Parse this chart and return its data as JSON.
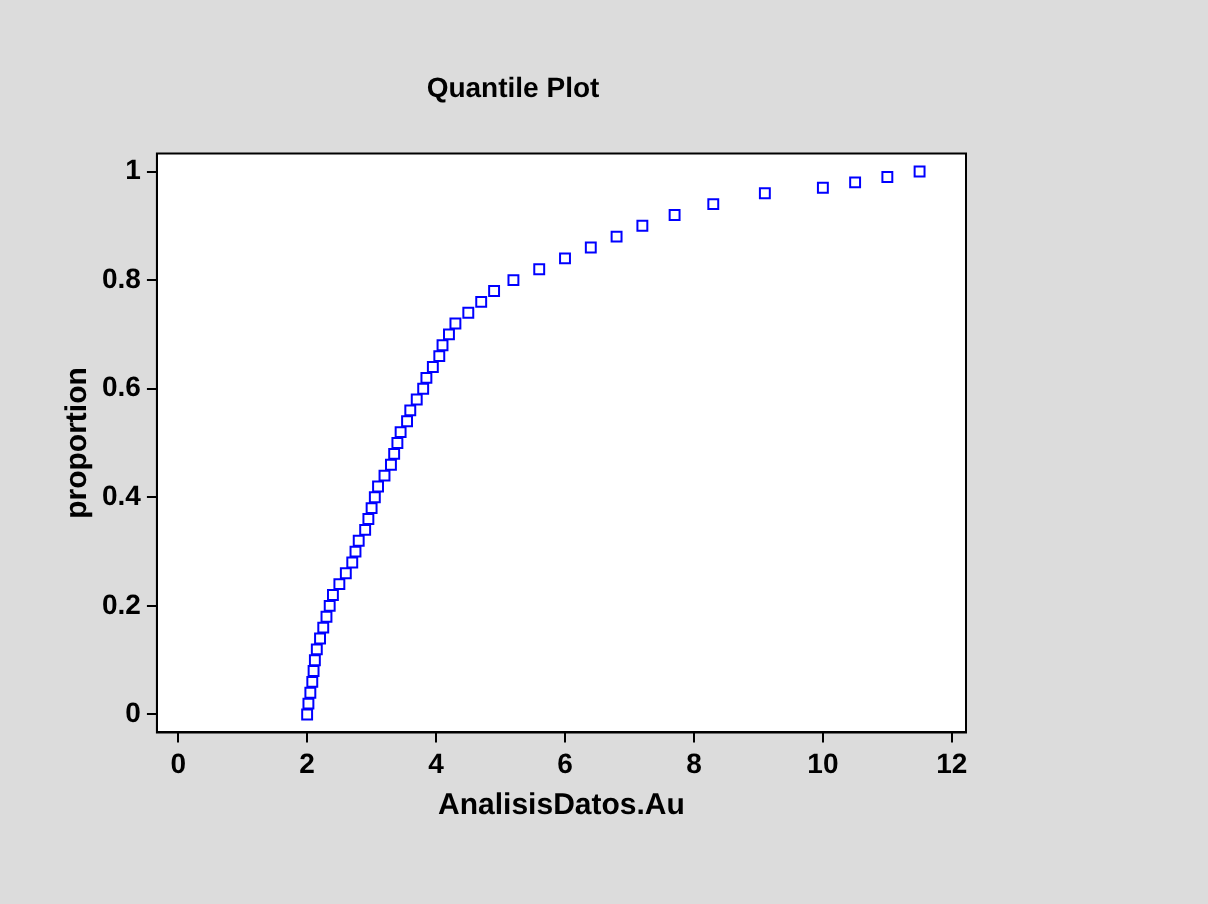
{
  "chart_data": {
    "type": "scatter",
    "title": "Quantile Plot",
    "xlabel": "AnalisisDatos.Au",
    "ylabel": "proportion",
    "marker": "square",
    "grid": false,
    "legend": false,
    "xlim": [
      -0.33,
      12.22
    ],
    "ylim": [
      -0.033,
      1.033
    ],
    "xticks": [
      0,
      2,
      4,
      6,
      8,
      10,
      12
    ],
    "yticks": [
      0,
      0.2,
      0.4,
      0.6,
      0.8,
      1
    ],
    "series": [
      {
        "color": "#0000ff",
        "x": [
          2.0,
          2.02,
          2.05,
          2.08,
          2.1,
          2.12,
          2.15,
          2.2,
          2.25,
          2.3,
          2.35,
          2.4,
          2.5,
          2.6,
          2.7,
          2.75,
          2.8,
          2.9,
          2.95,
          3.0,
          3.05,
          3.1,
          3.2,
          3.3,
          3.35,
          3.4,
          3.45,
          3.55,
          3.6,
          3.7,
          3.8,
          3.85,
          3.95,
          4.05,
          4.1,
          4.2,
          4.3,
          4.5,
          4.7,
          4.9,
          5.2,
          5.6,
          6.0,
          6.4,
          6.8,
          7.2,
          7.7,
          8.3,
          9.1,
          10.0,
          10.5,
          11.0,
          11.5
        ],
        "values": [
          0.0,
          0.02,
          0.04,
          0.06,
          0.08,
          0.1,
          0.12,
          0.14,
          0.16,
          0.18,
          0.2,
          0.22,
          0.24,
          0.26,
          0.28,
          0.3,
          0.32,
          0.34,
          0.36,
          0.38,
          0.4,
          0.42,
          0.44,
          0.46,
          0.48,
          0.5,
          0.52,
          0.54,
          0.56,
          0.58,
          0.6,
          0.62,
          0.64,
          0.66,
          0.68,
          0.7,
          0.72,
          0.74,
          0.76,
          0.78,
          0.8,
          0.82,
          0.84,
          0.86,
          0.88,
          0.9,
          0.92,
          0.94,
          0.96,
          0.97,
          0.98,
          0.99,
          1.0
        ]
      }
    ]
  }
}
